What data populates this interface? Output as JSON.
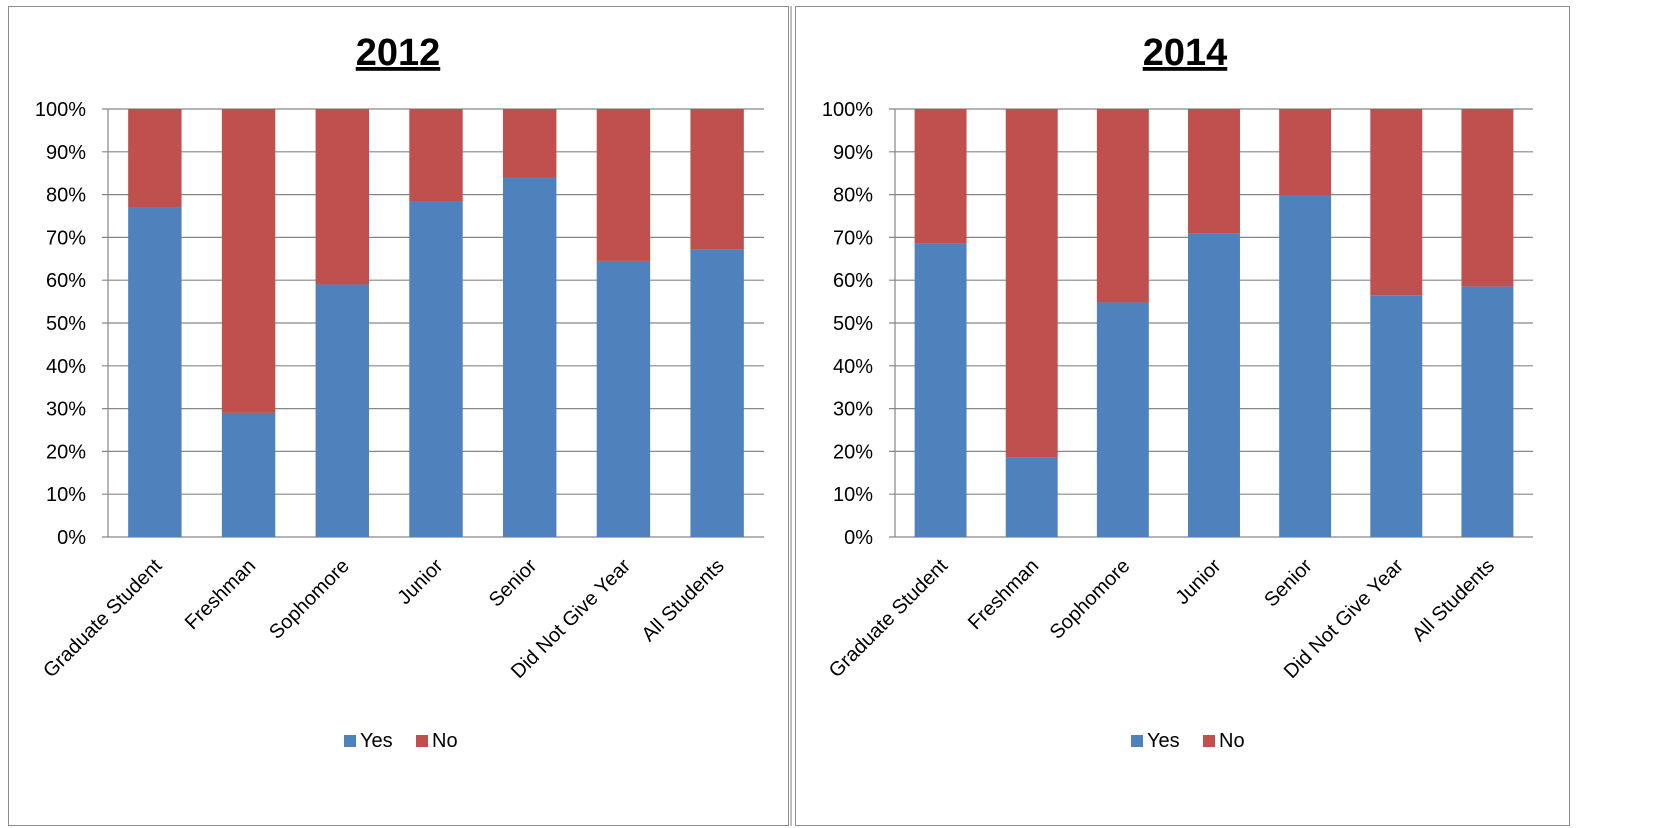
{
  "chart_data": [
    {
      "type": "bar",
      "stacked": true,
      "title": "2012",
      "categories": [
        "Graduate Student",
        "Freshman",
        "Sophomore",
        "Junior",
        "Senior",
        "Did Not Give Year",
        "All Students"
      ],
      "series": [
        {
          "name": "Yes",
          "color": "#4F81BD",
          "values": [
            0.77,
            0.29,
            0.59,
            0.785,
            0.84,
            0.645,
            0.672
          ]
        },
        {
          "name": "No",
          "color": "#C0504D",
          "values": [
            0.23,
            0.71,
            0.41,
            0.215,
            0.16,
            0.355,
            0.328
          ]
        }
      ],
      "y_ticks": [
        "0%",
        "10%",
        "20%",
        "30%",
        "40%",
        "50%",
        "60%",
        "70%",
        "80%",
        "90%",
        "100%"
      ],
      "ylim": [
        0,
        1
      ],
      "grid": true,
      "legend": "bottom"
    },
    {
      "type": "bar",
      "stacked": true,
      "title": "2014",
      "categories": [
        "Graduate Student",
        "Freshman",
        "Sophomore",
        "Junior",
        "Senior",
        "Did Not Give Year",
        "All Students"
      ],
      "series": [
        {
          "name": "Yes",
          "color": "#4F81BD",
          "values": [
            0.685,
            0.185,
            0.548,
            0.71,
            0.798,
            0.565,
            0.585
          ]
        },
        {
          "name": "No",
          "color": "#C0504D",
          "values": [
            0.315,
            0.815,
            0.452,
            0.29,
            0.202,
            0.435,
            0.415
          ]
        }
      ],
      "y_ticks": [
        "0%",
        "10%",
        "20%",
        "30%",
        "40%",
        "50%",
        "60%",
        "70%",
        "80%",
        "90%",
        "100%"
      ],
      "ylim": [
        0,
        1
      ],
      "grid": true,
      "legend": "bottom"
    }
  ]
}
